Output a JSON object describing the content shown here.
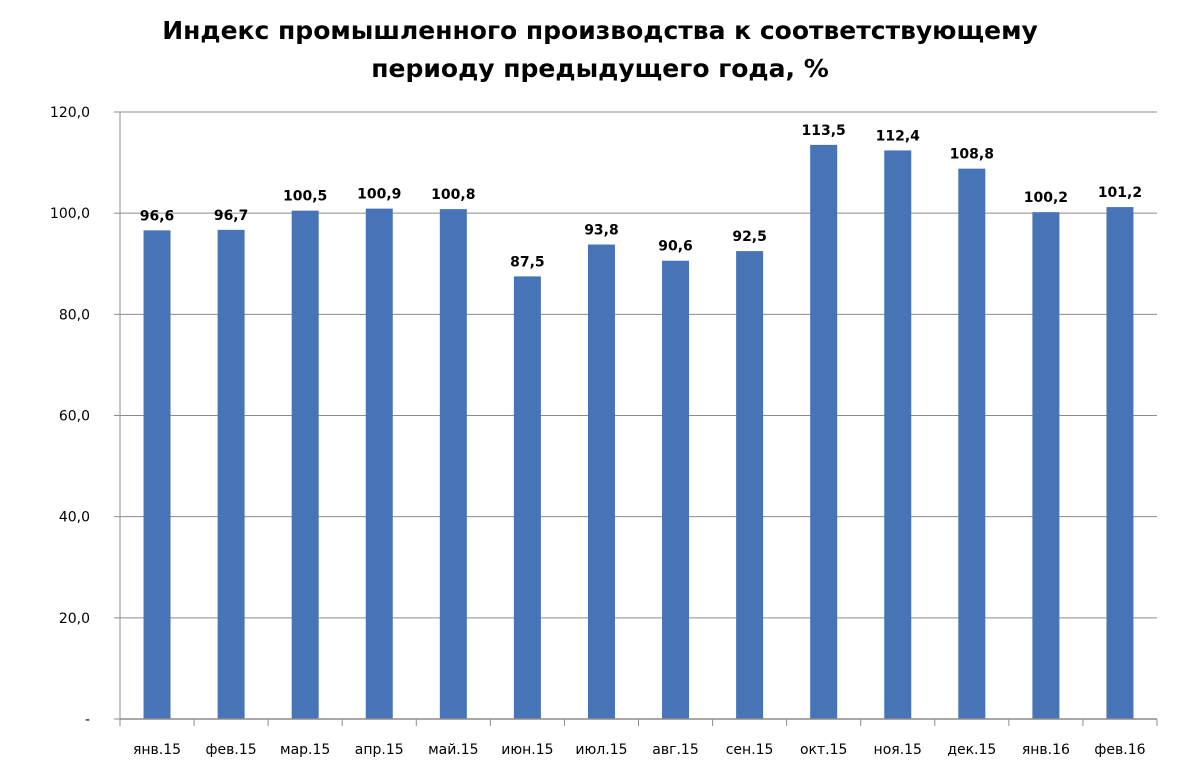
{
  "chart_data": {
    "type": "bar",
    "title": "Индекс промышленного производства к соответствующему периоду предыдущего года, %",
    "title_lines": [
      "Индекс промышленного производства к соответствующему",
      "периоду предыдущего года, %"
    ],
    "categories": [
      "янв.15",
      "фев.15",
      "мар.15",
      "апр.15",
      "май.15",
      "июн.15",
      "июл.15",
      "авг.15",
      "сен.15",
      "окт.15",
      "ноя.15",
      "дек.15",
      "янв.16",
      "фев.16"
    ],
    "values": [
      96.6,
      96.7,
      100.5,
      100.9,
      100.8,
      87.5,
      93.8,
      90.6,
      92.5,
      113.5,
      112.4,
      108.8,
      100.2,
      101.2
    ],
    "data_labels": [
      "96,6",
      "96,7",
      "100,5",
      "100,9",
      "100,8",
      "87,5",
      "93,8",
      "90,6",
      "92,5",
      "113,5",
      "112,4",
      "108,8",
      "100,2",
      "101,2"
    ],
    "xlabel": "",
    "ylabel": "",
    "ylim": [
      0,
      120
    ],
    "yticks": [
      0,
      20,
      40,
      60,
      80,
      100,
      120
    ],
    "ytick_labels": [
      "-",
      "20,0",
      "40,0",
      "60,0",
      "80,0",
      "100,0",
      "120,0"
    ],
    "grid": true,
    "legend": "none",
    "bar_color": "#4674B7",
    "grid_color": "#8C8C8C"
  }
}
